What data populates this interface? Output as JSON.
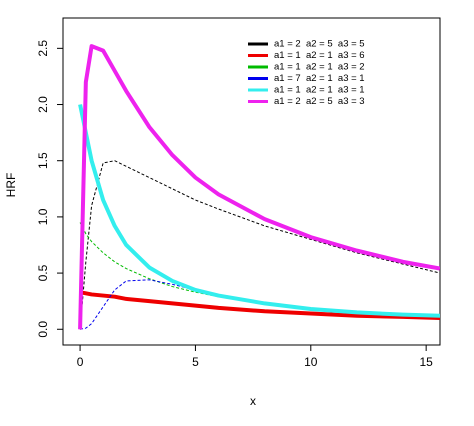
{
  "chart_data": {
    "type": "line",
    "xlabel": "x",
    "ylabel": "HRF",
    "x": [
      0,
      0.25,
      0.5,
      1,
      1.5,
      2,
      3,
      4,
      5,
      6,
      8,
      10,
      12,
      14,
      15.6
    ],
    "series": [
      {
        "name": "a1 = 2  a2 = 5  a3 = 5",
        "color": "#000000",
        "line_width": 1,
        "dash": true,
        "values": [
          0,
          0.6,
          1.1,
          1.48,
          1.5,
          1.45,
          1.35,
          1.25,
          1.15,
          1.07,
          0.92,
          0.8,
          0.68,
          0.58,
          0.5
        ]
      },
      {
        "name": "a1 = 1  a2 = 1  a3 = 6",
        "color": "#ee0000",
        "line_width": 4,
        "dash": false,
        "values": [
          0.33,
          0.32,
          0.31,
          0.3,
          0.29,
          0.27,
          0.25,
          0.23,
          0.21,
          0.19,
          0.16,
          0.14,
          0.12,
          0.11,
          0.1
        ]
      },
      {
        "name": "a1 = 1  a2 = 1  a3 = 2",
        "color": "#00bb00",
        "line_width": 1,
        "dash": true,
        "values": [
          0.95,
          0.85,
          0.78,
          0.68,
          0.6,
          0.54,
          0.45,
          0.38,
          0.33,
          0.29,
          0.23,
          0.19,
          0.16,
          0.14,
          0.12
        ]
      },
      {
        "name": "a1 = 7  a2 = 1  a3 = 1",
        "color": "#0000ee",
        "line_width": 1,
        "dash": true,
        "values": [
          0,
          0.01,
          0.05,
          0.2,
          0.35,
          0.43,
          0.44,
          0.4,
          0.35,
          0.3,
          0.23,
          0.18,
          0.15,
          0.13,
          0.11
        ]
      },
      {
        "name": "a1 = 1  a2 = 1  a3 = 1",
        "color": "#33eeee",
        "line_width": 4,
        "dash": false,
        "values": [
          2.0,
          1.75,
          1.5,
          1.15,
          0.92,
          0.75,
          0.55,
          0.43,
          0.35,
          0.3,
          0.23,
          0.18,
          0.15,
          0.13,
          0.12
        ]
      },
      {
        "name": "a1 = 2  a2 = 5  a3 = 3",
        "color": "#ee22ee",
        "line_width": 4,
        "dash": false,
        "values": [
          0,
          2.2,
          2.52,
          2.48,
          2.3,
          2.12,
          1.8,
          1.55,
          1.35,
          1.2,
          0.98,
          0.82,
          0.7,
          0.6,
          0.54
        ]
      }
    ],
    "xlim": [
      -0.74,
      15.6
    ],
    "ylim": [
      -0.14,
      2.77
    ],
    "xticks": [
      0,
      5,
      10,
      15
    ],
    "yticks": [
      {
        "value": 0,
        "label": "0.0"
      },
      0.5,
      {
        "value": 1,
        "label": "1.0"
      },
      1.5,
      {
        "value": 2,
        "label": "2.0"
      },
      2.5
    ],
    "grid": false
  }
}
